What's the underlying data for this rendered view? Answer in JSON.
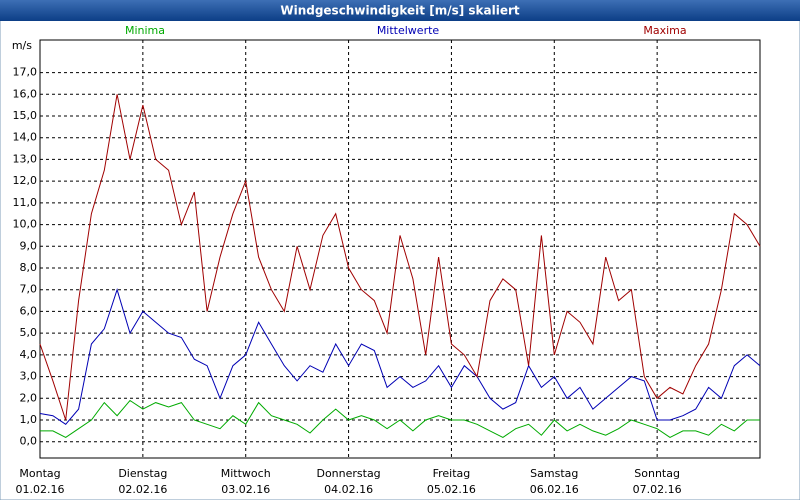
{
  "window_title": "Windgeschwindigkeit [m/s] skaliert",
  "chart_data": {
    "type": "line",
    "ylabel": "m/s",
    "x": [
      0,
      3,
      6,
      9,
      12,
      15,
      18,
      21,
      24,
      27,
      30,
      33,
      36,
      39,
      42,
      45,
      48,
      51,
      54,
      57,
      60,
      63,
      66,
      69,
      72,
      75,
      78,
      81,
      84,
      87,
      90,
      93,
      96,
      99,
      102,
      105,
      108,
      111,
      114,
      117,
      120,
      123,
      126,
      129,
      132,
      135,
      138,
      141,
      144,
      147,
      150,
      153,
      156,
      159,
      162,
      165,
      168
    ],
    "xlim": [
      0,
      168
    ],
    "xticks": [
      {
        "value": 0,
        "label": "Montag",
        "date": "01.02.16"
      },
      {
        "value": 24,
        "label": "Dienstag",
        "date": "02.02.16"
      },
      {
        "value": 48,
        "label": "Mittwoch",
        "date": "03.02.16"
      },
      {
        "value": 72,
        "label": "Donnerstag",
        "date": "04.02.16"
      },
      {
        "value": 96,
        "label": "Freitag",
        "date": "05.02.16"
      },
      {
        "value": 120,
        "label": "Samstag",
        "date": "06.02.16"
      },
      {
        "value": 144,
        "label": "Sonntag",
        "date": "07.02.16"
      }
    ],
    "ylim": [
      -0.75,
      18.5
    ],
    "yticks": [
      {
        "value": 0,
        "label": "0,0"
      },
      {
        "value": 1,
        "label": "1,0"
      },
      {
        "value": 2,
        "label": "2,0"
      },
      {
        "value": 3,
        "label": "3,0"
      },
      {
        "value": 4,
        "label": "4,0"
      },
      {
        "value": 5,
        "label": "5,0"
      },
      {
        "value": 6,
        "label": "6,0"
      },
      {
        "value": 7,
        "label": "7,0"
      },
      {
        "value": 8,
        "label": "8,0"
      },
      {
        "value": 9,
        "label": "9,0"
      },
      {
        "value": 10,
        "label": "10,0"
      },
      {
        "value": 11,
        "label": "11,0"
      },
      {
        "value": 12,
        "label": "12,0"
      },
      {
        "value": 13,
        "label": "13,0"
      },
      {
        "value": 14,
        "label": "14,0"
      },
      {
        "value": 15,
        "label": "15,0"
      },
      {
        "value": 16,
        "label": "16,0"
      },
      {
        "value": 17,
        "label": "17,0"
      }
    ],
    "grid": true,
    "series": [
      {
        "name": "Minima",
        "color": "#00aa00",
        "values": [
          0.5,
          0.5,
          0.2,
          0.6,
          1.0,
          1.8,
          1.2,
          1.9,
          1.5,
          1.8,
          1.6,
          1.8,
          1.0,
          0.8,
          0.6,
          1.2,
          0.8,
          1.8,
          1.2,
          1.0,
          0.8,
          0.4,
          1.0,
          1.5,
          1.0,
          1.2,
          1.0,
          0.6,
          1.0,
          0.5,
          1.0,
          1.2,
          1.0,
          1.0,
          0.8,
          0.5,
          0.2,
          0.6,
          0.8,
          0.3,
          1.0,
          0.5,
          0.8,
          0.5,
          0.3,
          0.6,
          1.0,
          0.8,
          0.6,
          0.2,
          0.5,
          0.5,
          0.3,
          0.8,
          0.5,
          1.0,
          1.0
        ]
      },
      {
        "name": "Mittelwerte",
        "color": "#0000b4",
        "values": [
          1.3,
          1.2,
          0.8,
          1.5,
          4.5,
          5.2,
          7.0,
          5.0,
          6.0,
          5.5,
          5.0,
          4.8,
          3.8,
          3.5,
          2.0,
          3.5,
          4.0,
          5.5,
          4.5,
          3.5,
          2.8,
          3.5,
          3.2,
          4.5,
          3.5,
          4.5,
          4.2,
          2.5,
          3.0,
          2.5,
          2.8,
          3.5,
          2.5,
          3.5,
          3.0,
          2.0,
          1.5,
          1.8,
          3.5,
          2.5,
          3.0,
          2.0,
          2.5,
          1.5,
          2.0,
          2.5,
          3.0,
          2.8,
          1.0,
          1.0,
          1.2,
          1.5,
          2.5,
          2.0,
          3.5,
          4.0,
          3.5
        ]
      },
      {
        "name": "Maxima",
        "color": "#a00000",
        "values": [
          4.5,
          2.8,
          1.0,
          6.5,
          10.5,
          12.5,
          16.0,
          13.0,
          15.5,
          13.0,
          12.5,
          10.0,
          11.5,
          6.0,
          8.5,
          10.5,
          12.0,
          8.5,
          7.0,
          6.0,
          9.0,
          7.0,
          9.5,
          10.5,
          8.0,
          7.0,
          6.5,
          5.0,
          9.5,
          7.5,
          4.0,
          8.5,
          4.5,
          4.0,
          3.0,
          6.5,
          7.5,
          7.0,
          3.5,
          9.5,
          4.0,
          6.0,
          5.5,
          4.5,
          8.5,
          6.5,
          7.0,
          3.0,
          2.0,
          2.5,
          2.2,
          3.5,
          4.5,
          7.0,
          10.5,
          10.0,
          9.0
        ]
      }
    ]
  }
}
